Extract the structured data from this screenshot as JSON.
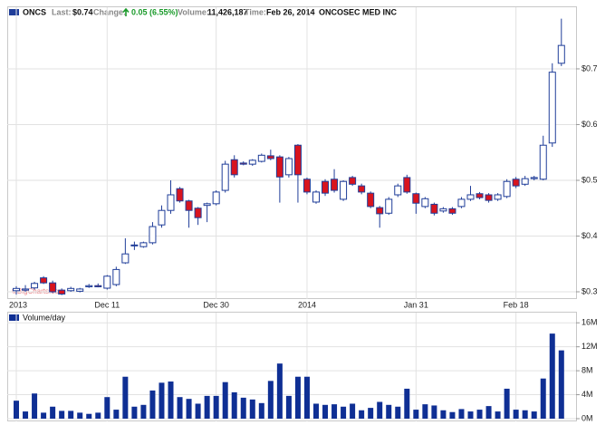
{
  "header": {
    "symbol": "ONCS",
    "fields": [
      {
        "label": "Last:",
        "value": "$0.74"
      },
      {
        "label": "Change:",
        "value": "0.05 (6.55%)"
      },
      {
        "label": "Volume:",
        "value": "11,426,187"
      },
      {
        "label": "Time:",
        "value": "Feb 26, 2014"
      }
    ],
    "company": "ONCOSEC MED INC",
    "watermark": "©BigCharts.com"
  },
  "chart_data": [
    {
      "type": "candlestick",
      "categories": [
        "2013",
        null,
        null,
        null,
        null,
        null,
        null,
        null,
        null,
        null,
        "Dec 11",
        null,
        null,
        null,
        null,
        null,
        null,
        null,
        null,
        null,
        null,
        null,
        "Dec 30",
        null,
        null,
        null,
        null,
        null,
        null,
        null,
        null,
        null,
        "2014",
        null,
        null,
        null,
        null,
        null,
        null,
        null,
        null,
        null,
        null,
        null,
        "Jan 31",
        null,
        null,
        null,
        null,
        null,
        null,
        null,
        null,
        null,
        null,
        "Feb 18",
        null,
        null,
        null,
        null,
        null
      ],
      "open": [
        0.302,
        0.303,
        0.307,
        0.325,
        0.316,
        0.303,
        0.302,
        0.301,
        0.309,
        0.311,
        0.3065,
        0.313,
        0.352,
        0.383,
        0.381,
        0.388,
        0.42,
        0.446,
        0.485,
        0.463,
        0.45,
        0.455,
        0.458,
        0.482,
        0.537,
        0.531,
        0.529,
        0.534,
        0.544,
        0.542,
        0.51,
        0.563,
        0.502,
        0.461,
        0.498,
        0.502,
        0.466,
        0.505,
        0.49,
        0.477,
        0.451,
        0.441,
        0.474,
        0.505,
        0.476,
        0.453,
        0.457,
        0.445,
        0.449,
        0.453,
        0.466,
        0.476,
        0.474,
        0.466,
        0.471,
        0.502,
        0.493,
        0.503,
        0.502,
        0.567,
        0.71
      ],
      "high": [
        0.31,
        0.312,
        0.318,
        0.328,
        0.32,
        0.306,
        0.309,
        0.307,
        0.314,
        0.315,
        0.33,
        0.345,
        0.396,
        0.39,
        0.39,
        0.425,
        0.455,
        0.5,
        0.488,
        0.465,
        0.452,
        0.46,
        0.482,
        0.535,
        0.545,
        0.534,
        0.538,
        0.548,
        0.555,
        0.545,
        0.542,
        0.565,
        0.505,
        0.482,
        0.502,
        0.52,
        0.5,
        0.508,
        0.494,
        0.48,
        0.454,
        0.47,
        0.494,
        0.51,
        0.478,
        0.47,
        0.46,
        0.452,
        0.452,
        0.47,
        0.49,
        0.479,
        0.477,
        0.477,
        0.502,
        0.506,
        0.508,
        0.508,
        0.58,
        0.71,
        0.79
      ],
      "low": [
        0.295,
        0.3,
        0.304,
        0.314,
        0.298,
        0.294,
        0.3,
        0.299,
        0.307,
        0.308,
        0.304,
        0.31,
        0.35,
        0.375,
        0.379,
        0.385,
        0.415,
        0.44,
        0.46,
        0.415,
        0.42,
        0.425,
        0.455,
        0.478,
        0.505,
        0.527,
        0.526,
        0.532,
        0.536,
        0.46,
        0.505,
        0.46,
        0.475,
        0.458,
        0.472,
        0.478,
        0.463,
        0.49,
        0.475,
        0.45,
        0.415,
        0.438,
        0.47,
        0.476,
        0.44,
        0.45,
        0.437,
        0.442,
        0.438,
        0.45,
        0.463,
        0.466,
        0.46,
        0.463,
        0.468,
        0.486,
        0.49,
        0.5,
        0.5,
        0.56,
        0.705
      ],
      "close": [
        0.306,
        0.305,
        0.315,
        0.316,
        0.3,
        0.296,
        0.306,
        0.305,
        0.311,
        0.309,
        0.328,
        0.34,
        0.368,
        0.384,
        0.388,
        0.417,
        0.446,
        0.474,
        0.463,
        0.446,
        0.433,
        0.458,
        0.479,
        0.529,
        0.51,
        0.529,
        0.536,
        0.545,
        0.539,
        0.506,
        0.539,
        0.51,
        0.479,
        0.479,
        0.477,
        0.482,
        0.498,
        0.493,
        0.479,
        0.453,
        0.44,
        0.466,
        0.49,
        0.479,
        0.459,
        0.467,
        0.441,
        0.449,
        0.441,
        0.466,
        0.474,
        0.469,
        0.464,
        0.474,
        0.498,
        0.49,
        0.503,
        0.505,
        0.563,
        0.694,
        0.742
      ],
      "up_color": "#1f3d99",
      "down_color": "#d8141e",
      "ylim": [
        0.287,
        0.791
      ],
      "yticks": [
        {
          "value": 0.3,
          "label": "$0.3"
        },
        {
          "value": 0.4,
          "label": "$0.4"
        },
        {
          "value": 0.5,
          "label": "$0.5"
        },
        {
          "value": 0.6,
          "label": "$0.6"
        },
        {
          "value": 0.7,
          "label": "$0.7"
        }
      ],
      "grid": true
    },
    {
      "type": "bar",
      "title": "Volume/day",
      "color": "#0f2f94",
      "values": [
        3,
        1.2,
        4.2,
        1,
        2,
        1.3,
        1.3,
        1,
        0.8,
        1,
        3.6,
        1.5,
        7,
        2,
        2.3,
        4.7,
        6,
        6.2,
        3.6,
        3.3,
        2.5,
        3.8,
        3.8,
        6.1,
        4.4,
        3.5,
        3.2,
        2.6,
        6.3,
        9.2,
        3.8,
        7,
        7,
        2.5,
        2.3,
        2.4,
        2,
        2.5,
        1.4,
        1.8,
        2.8,
        2.3,
        2,
        5,
        1.5,
        2.4,
        2.2,
        1.4,
        1.1,
        1.6,
        1.2,
        1.5,
        2.1,
        1.2,
        5,
        1.5,
        1.4,
        1.2,
        6.7,
        14.2,
        11.4
      ],
      "ylim": [
        0,
        17.7
      ],
      "yticks": [
        {
          "value": 0,
          "label": "0M"
        },
        {
          "value": 4,
          "label": "4M"
        },
        {
          "value": 8,
          "label": "8M"
        },
        {
          "value": 12,
          "label": "12M"
        },
        {
          "value": 16,
          "label": "16M"
        }
      ],
      "grid": true
    }
  ]
}
